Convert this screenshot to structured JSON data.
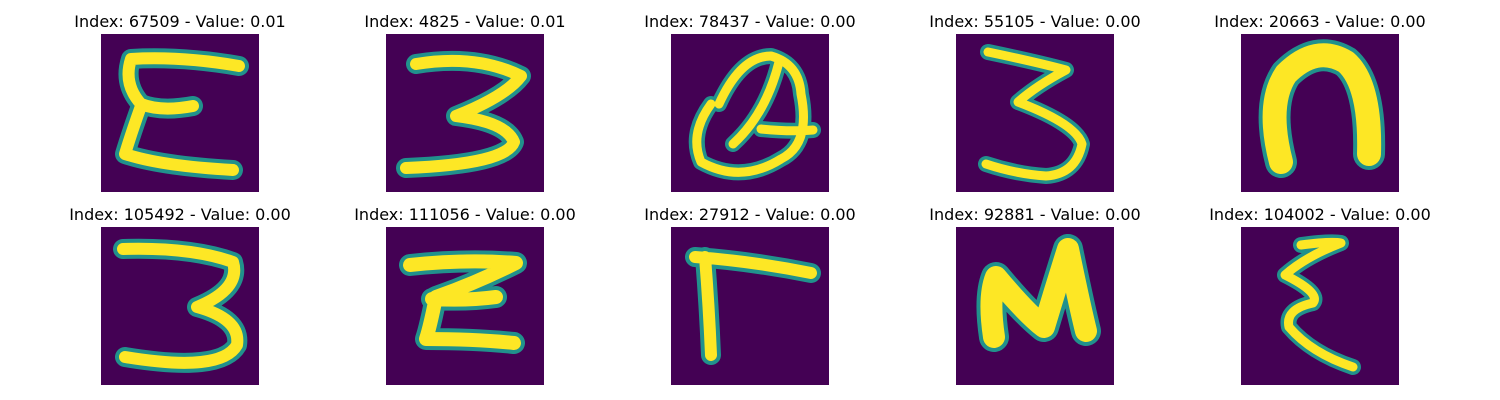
{
  "colors": {
    "background": "#440154",
    "glyph": "#fde725",
    "edge": "#21918c",
    "edge_mid": "#5ec962"
  },
  "panels": [
    {
      "title": "Index: 67509 - Value: 0.01",
      "glyph": "E"
    },
    {
      "title": "Index: 4825 - Value: 0.01",
      "glyph": "3"
    },
    {
      "title": "Index: 78437 - Value: 0.00",
      "glyph": "a-loop"
    },
    {
      "title": "Index: 55105 - Value: 0.00",
      "glyph": "3"
    },
    {
      "title": "Index: 20663 - Value: 0.00",
      "glyph": "n"
    },
    {
      "title": "Index: 105492 - Value: 0.00",
      "glyph": "3"
    },
    {
      "title": "Index: 111056 - Value: 0.00",
      "glyph": "Z"
    },
    {
      "title": "Index: 27912 - Value: 0.00",
      "glyph": "Г"
    },
    {
      "title": "Index: 92881 - Value: 0.00",
      "glyph": "N"
    },
    {
      "title": "Index: 104002 - Value: 0.00",
      "glyph": "ξ"
    }
  ]
}
